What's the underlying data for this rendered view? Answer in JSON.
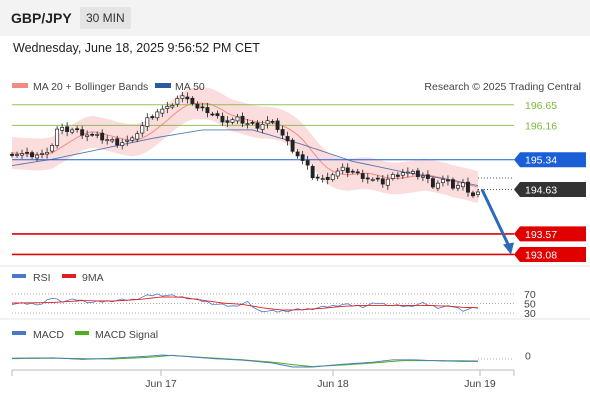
{
  "header": {
    "symbol": "GBP/JPY",
    "timeframe": "30 MIN",
    "timestamp": "Wednesday, June 18, 2025 9:56:52 PM CET"
  },
  "legend": {
    "ma20": "MA 20 + Bollinger Bands",
    "ma50": "MA 50",
    "credit": "Research © 2025 Trading Central",
    "rsi": "RSI",
    "rsi_ma": "9MA",
    "macd": "MACD",
    "macd_signal": "MACD Signal"
  },
  "colors": {
    "ma20": "#f28b82",
    "band_fill": "#fbd5d5",
    "ma50": "#2c5aa0",
    "support": "#e00000",
    "resistance": "#7cba3a",
    "pivot": "#1a5fd6",
    "last": "#333333",
    "arrow": "#2a6ab8",
    "candle": "#222222",
    "rsi": "#4a78c8",
    "rsi_ma": "#e02020",
    "macd": "#4a78c8",
    "macd_signal": "#4caf1c"
  },
  "chart_data": [
    {
      "type": "candlestick",
      "title": "GBP/JPY 30 MIN",
      "x_ticks": [
        "Jun 17",
        "Jun 18",
        "Jun 19"
      ],
      "ylim": [
        192.9,
        197.05
      ],
      "levels": [
        {
          "value": 196.65,
          "label": "196.65",
          "kind": "resistance"
        },
        {
          "value": 196.16,
          "label": "196.16",
          "kind": "resistance"
        },
        {
          "value": 195.34,
          "label": "195.34",
          "kind": "pivot"
        },
        {
          "value": 194.63,
          "label": "194.63",
          "kind": "last"
        },
        {
          "value": 193.57,
          "label": "193.57",
          "kind": "support"
        },
        {
          "value": 193.08,
          "label": "193.08",
          "kind": "support"
        }
      ],
      "close_anchors": [
        [
          0,
          195.5
        ],
        [
          3,
          195.45
        ],
        [
          6,
          195.45
        ],
        [
          8,
          195.7
        ],
        [
          9,
          196.05
        ],
        [
          12,
          196.05
        ],
        [
          15,
          195.95
        ],
        [
          18,
          195.85
        ],
        [
          21,
          195.75
        ],
        [
          24,
          195.8
        ],
        [
          25,
          196.0
        ],
        [
          27,
          196.3
        ],
        [
          29,
          196.5
        ],
        [
          31,
          196.55
        ],
        [
          33,
          196.8
        ],
        [
          35,
          196.85
        ],
        [
          37,
          196.55
        ],
        [
          39,
          196.5
        ],
        [
          41,
          196.35
        ],
        [
          43,
          196.25
        ],
        [
          45,
          196.3
        ],
        [
          47,
          196.2
        ],
        [
          49,
          196.15
        ],
        [
          51,
          196.25
        ],
        [
          53,
          196.1
        ],
        [
          55,
          195.75
        ],
        [
          57,
          195.45
        ],
        [
          59,
          195.15
        ],
        [
          60,
          194.95
        ],
        [
          62,
          194.85
        ],
        [
          64,
          195.0
        ],
        [
          66,
          195.1
        ],
        [
          68,
          195.05
        ],
        [
          70,
          194.95
        ],
        [
          72,
          194.85
        ],
        [
          74,
          194.8
        ],
        [
          76,
          194.95
        ],
        [
          78,
          195.05
        ],
        [
          80,
          195.0
        ],
        [
          82,
          194.95
        ],
        [
          84,
          194.75
        ],
        [
          86,
          194.85
        ],
        [
          88,
          194.7
        ],
        [
          90,
          194.75
        ],
        [
          92,
          194.5
        ],
        [
          93,
          194.55
        ]
      ],
      "ma50_anchors": [
        [
          0,
          195.2
        ],
        [
          8,
          195.35
        ],
        [
          18,
          195.6
        ],
        [
          28,
          195.85
        ],
        [
          38,
          196.05
        ],
        [
          48,
          196.05
        ],
        [
          58,
          195.7
        ],
        [
          68,
          195.3
        ],
        [
          78,
          195.05
        ],
        [
          88,
          194.85
        ],
        [
          93,
          194.72
        ]
      ],
      "bollinger_halfwidth": 0.38,
      "forecast": {
        "from": 194.63,
        "to": 193.08
      }
    },
    {
      "type": "line",
      "name": "RSI",
      "ticks": [
        70,
        50,
        30
      ],
      "ylim": [
        25,
        75
      ],
      "rsi_anchors": [
        [
          0,
          50
        ],
        [
          6,
          49
        ],
        [
          8,
          62
        ],
        [
          10,
          55
        ],
        [
          13,
          58
        ],
        [
          16,
          52
        ],
        [
          20,
          56
        ],
        [
          24,
          58
        ],
        [
          27,
          66
        ],
        [
          29,
          69
        ],
        [
          32,
          66
        ],
        [
          35,
          62
        ],
        [
          38,
          55
        ],
        [
          41,
          48
        ],
        [
          44,
          44
        ],
        [
          47,
          52
        ],
        [
          49,
          36
        ],
        [
          51,
          34
        ],
        [
          53,
          33
        ],
        [
          56,
          36
        ],
        [
          59,
          38
        ],
        [
          62,
          42
        ],
        [
          66,
          48
        ],
        [
          70,
          44
        ],
        [
          73,
          51
        ],
        [
          76,
          46
        ],
        [
          79,
          44
        ],
        [
          82,
          50
        ],
        [
          85,
          42
        ],
        [
          88,
          44
        ],
        [
          90,
          36
        ],
        [
          93,
          41
        ]
      ],
      "ma_anchors": [
        [
          0,
          51
        ],
        [
          8,
          52
        ],
        [
          14,
          56
        ],
        [
          20,
          55
        ],
        [
          26,
          59
        ],
        [
          30,
          64
        ],
        [
          34,
          63
        ],
        [
          38,
          57
        ],
        [
          42,
          51
        ],
        [
          46,
          48
        ],
        [
          50,
          41
        ],
        [
          54,
          36
        ],
        [
          58,
          37
        ],
        [
          62,
          40
        ],
        [
          66,
          44
        ],
        [
          70,
          46
        ],
        [
          74,
          46
        ],
        [
          78,
          46
        ],
        [
          82,
          46
        ],
        [
          86,
          45
        ],
        [
          90,
          42
        ],
        [
          93,
          41
        ]
      ]
    },
    {
      "type": "line",
      "name": "MACD",
      "ticks": [
        0
      ],
      "ylim": [
        -0.3,
        0.3
      ],
      "macd_anchors": [
        [
          0,
          0.02
        ],
        [
          8,
          0.03
        ],
        [
          14,
          -0.01
        ],
        [
          20,
          0.02
        ],
        [
          27,
          0.07
        ],
        [
          30,
          0.1
        ],
        [
          34,
          0.07
        ],
        [
          40,
          0.01
        ],
        [
          46,
          -0.03
        ],
        [
          52,
          -0.1
        ],
        [
          56,
          -0.2
        ],
        [
          60,
          -0.2
        ],
        [
          66,
          -0.13
        ],
        [
          72,
          -0.08
        ],
        [
          76,
          -0.02
        ],
        [
          80,
          -0.02
        ],
        [
          86,
          -0.05
        ],
        [
          90,
          -0.06
        ],
        [
          93,
          -0.06
        ]
      ],
      "signal_anchors": [
        [
          0,
          0.01
        ],
        [
          8,
          0.02
        ],
        [
          14,
          0.01
        ],
        [
          20,
          0.0
        ],
        [
          27,
          0.04
        ],
        [
          32,
          0.09
        ],
        [
          38,
          0.04
        ],
        [
          46,
          -0.02
        ],
        [
          52,
          -0.08
        ],
        [
          56,
          -0.14
        ],
        [
          60,
          -0.19
        ],
        [
          66,
          -0.15
        ],
        [
          72,
          -0.1
        ],
        [
          78,
          -0.04
        ],
        [
          86,
          -0.04
        ],
        [
          93,
          -0.05
        ]
      ]
    }
  ]
}
